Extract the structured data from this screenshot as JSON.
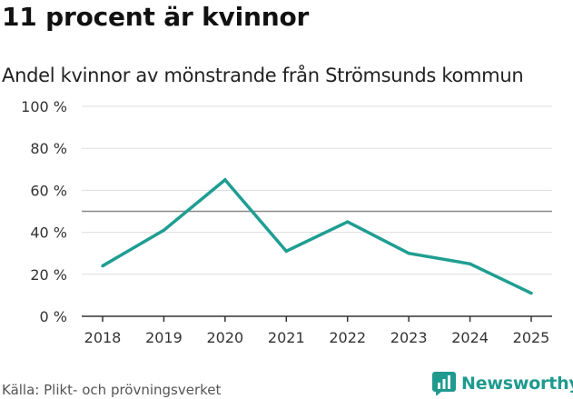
{
  "header": {
    "title": "11 procent är kvinnor",
    "subtitle": "Andel kvinnor av mönstrande från Strömsunds kommun"
  },
  "footer": {
    "source": "Källa: Plikt- och prövningsverket",
    "brand": "Newsworthy"
  },
  "colors": {
    "line": "#1f9e92",
    "grid": "#dddddd",
    "reference": "#888888",
    "brand": "#1f9a8e"
  },
  "icons": {
    "logo": "bar-chart-logo-icon"
  },
  "chart_data": {
    "type": "line",
    "title": "11 procent är kvinnor",
    "subtitle": "Andel kvinnor av mönstrande från Strömsunds kommun",
    "xlabel": "",
    "ylabel": "",
    "categories": [
      "2018",
      "2019",
      "2020",
      "2021",
      "2022",
      "2023",
      "2024",
      "2025"
    ],
    "series": [
      {
        "name": "Andel kvinnor",
        "values": [
          24,
          41,
          65,
          31,
          45,
          30,
          25,
          11
        ]
      }
    ],
    "ylim": [
      0,
      100
    ],
    "yticks": [
      0,
      20,
      40,
      60,
      80,
      100
    ],
    "ytick_labels": [
      "0 %",
      "20 %",
      "40 %",
      "60 %",
      "80 %",
      "100 %"
    ],
    "reference_line": 50,
    "grid": true,
    "legend": "none"
  }
}
